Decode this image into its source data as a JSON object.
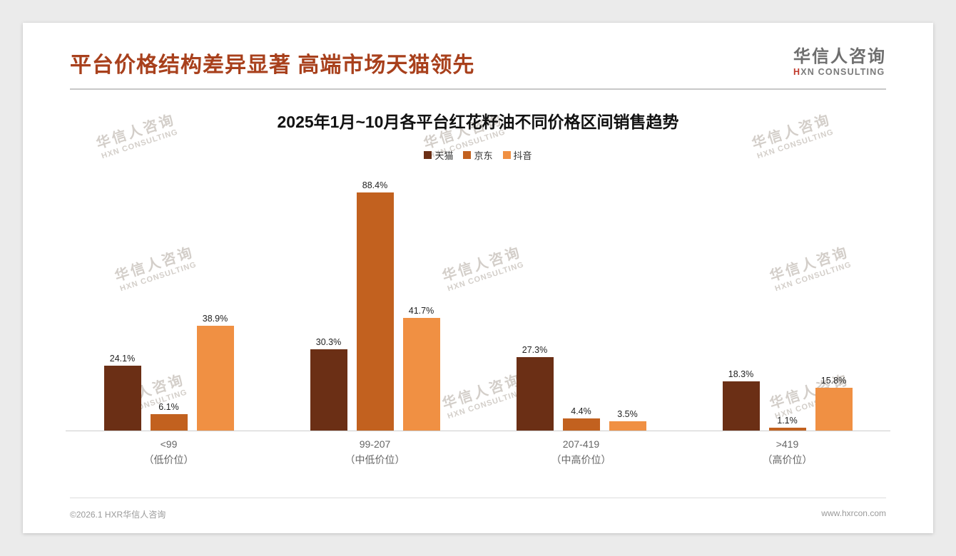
{
  "header": {
    "title": "平台价格结构差异显著 高端市场天猫领先",
    "title_color": "#a8401c",
    "logo": {
      "cn": "华信人咨询",
      "en": "HXN CONSULTING"
    }
  },
  "watermark": {
    "cn": "华信人咨询",
    "en": "HXN CONSULTING"
  },
  "chart_data": {
    "type": "bar",
    "title": "2025年1月~10月各平台红花籽油不同价格区间销售趋势",
    "categories": [
      "<99",
      "99-207",
      "207-419",
      ">419"
    ],
    "category_sublabels": [
      "（低价位）",
      "（中低价位）",
      "（中高价位）",
      "（高价位）"
    ],
    "series": [
      {
        "name": "天猫",
        "color": "#6b2f15",
        "values": [
          24.1,
          30.3,
          27.3,
          18.3
        ]
      },
      {
        "name": "京东",
        "color": "#c2611f",
        "values": [
          6.1,
          88.4,
          4.4,
          1.1
        ]
      },
      {
        "name": "抖音",
        "color": "#f09043",
        "values": [
          38.9,
          41.7,
          3.5,
          15.8
        ]
      }
    ],
    "value_suffix": "%",
    "ylim": [
      0,
      95
    ],
    "legend_position": "top",
    "grid": false
  },
  "footer": {
    "copyright": "©2026.1 HXR华信人咨询",
    "website": "www.hxrcon.com"
  }
}
